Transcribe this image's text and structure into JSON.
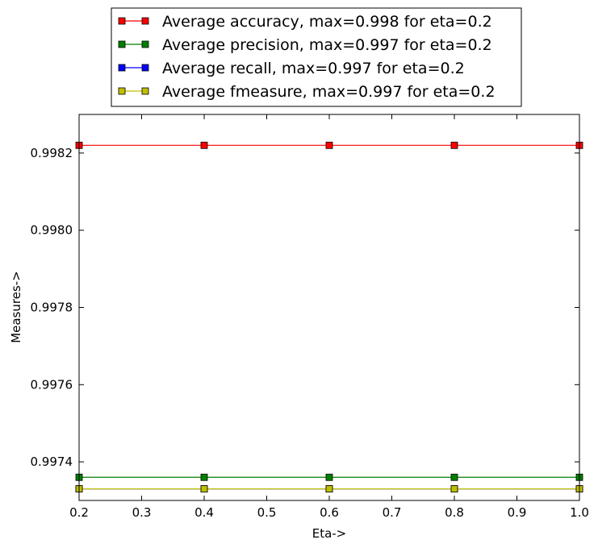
{
  "chart_data": {
    "type": "line",
    "xlabel": "Eta->",
    "ylabel": "Measures->",
    "xlim": [
      0.2,
      1.0
    ],
    "ylim": [
      0.9973,
      0.9983
    ],
    "x": [
      0.2,
      0.4,
      0.6,
      0.8,
      1.0
    ],
    "xticks": [
      "0.2",
      "0.3",
      "0.4",
      "0.5",
      "0.6",
      "0.7",
      "0.8",
      "0.9",
      "1.0"
    ],
    "yticks": [
      "0.9974",
      "0.9976",
      "0.9978",
      "0.9980",
      "0.9982"
    ],
    "grid": false,
    "legend_position": "top-center",
    "series": [
      {
        "name": "Average accuracy, max=0.998 for eta=0.2",
        "color": "#ff0000",
        "marker": "square",
        "values": [
          0.99822,
          0.99822,
          0.99822,
          0.99822,
          0.99822
        ]
      },
      {
        "name": "Average precision, max=0.997 for eta=0.2",
        "color": "#008000",
        "marker": "square",
        "values": [
          0.99736,
          0.99736,
          0.99736,
          0.99736,
          0.99736
        ]
      },
      {
        "name": "Average recall, max=0.997 for eta=0.2",
        "color": "#0000ff",
        "marker": "square",
        "values": [
          0.99733,
          0.99733,
          0.99733,
          0.99733,
          0.99733
        ]
      },
      {
        "name": "Average fmeasure, max=0.997 for eta=0.2",
        "color": "#bfbf00",
        "marker": "square",
        "values": [
          0.99733,
          0.99733,
          0.99733,
          0.99733,
          0.99733
        ]
      }
    ]
  }
}
